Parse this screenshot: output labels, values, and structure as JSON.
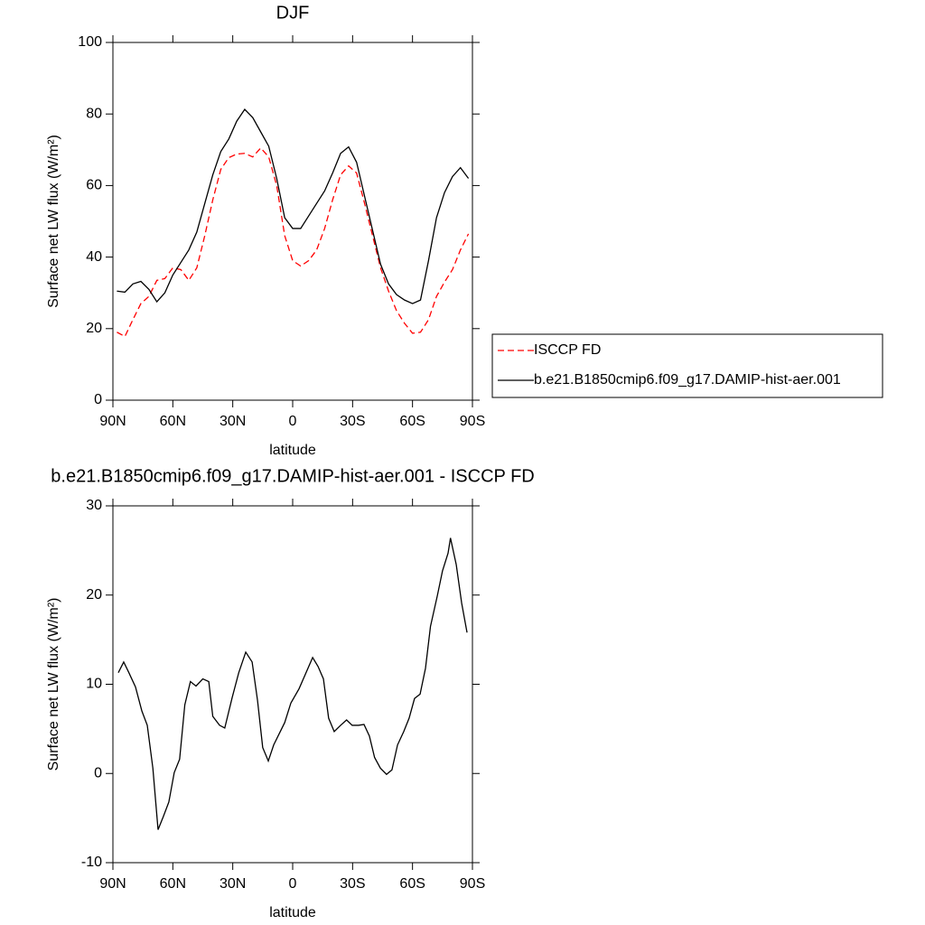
{
  "chart_data": [
    {
      "type": "line",
      "title": "DJF",
      "x_label": "latitude",
      "y_label": "Surface net LW flux (W/m²)",
      "xlim": [
        90,
        -90
      ],
      "xticks": [
        {
          "value": 90,
          "label": "90N"
        },
        {
          "value": 60,
          "label": "60N"
        },
        {
          "value": 30,
          "label": "30N"
        },
        0,
        {
          "value": -30,
          "label": "30S"
        },
        {
          "value": -60,
          "label": "60S"
        },
        {
          "value": -90,
          "label": "90S"
        }
      ],
      "ylim": [
        0,
        100
      ],
      "yticks": [
        0,
        20,
        40,
        60,
        80,
        100
      ],
      "legend": "right",
      "x": [
        88,
        84,
        80,
        76,
        72,
        68,
        64,
        60,
        56,
        52,
        48,
        44,
        40,
        36,
        32,
        28,
        24,
        20,
        16,
        12,
        8,
        4,
        0,
        -4,
        -8,
        -12,
        -16,
        -20,
        -24,
        -28,
        -32,
        -36,
        -40,
        -44,
        -48,
        -52,
        -56,
        -60,
        -64,
        -68,
        -72,
        -76,
        -80,
        -84,
        -88
      ],
      "series": [
        {
          "name": "ISCCP FD",
          "color": "#ff0000",
          "linestyle": "dashed",
          "values": [
            19,
            17.8,
            22.5,
            27,
            29,
            33.5,
            34,
            37,
            36.5,
            33.5,
            37,
            46,
            56,
            64.5,
            67.8,
            68.8,
            69,
            68,
            70.5,
            68,
            60,
            46,
            39,
            37.5,
            39,
            42,
            48,
            56,
            63,
            65.5,
            63.5,
            55,
            46,
            37,
            30.5,
            25,
            21.5,
            18.7,
            19,
            22.5,
            29,
            33,
            36.5,
            42,
            46.5
          ]
        },
        {
          "name": "b.e21.B1850cmip6.f09_g17.DAMIP-hist-aer.001",
          "color": "#000000",
          "linestyle": "solid",
          "values": [
            30.5,
            30.2,
            32.5,
            33.2,
            31,
            27.5,
            30,
            35,
            38.5,
            42,
            47,
            55,
            63,
            69.5,
            73,
            78,
            81.3,
            79,
            75,
            71,
            62,
            51,
            48,
            48,
            51.5,
            55,
            58.5,
            63.5,
            69,
            70.8,
            66.5,
            57,
            47.5,
            38,
            32.5,
            29.5,
            28,
            27,
            28,
            39,
            51,
            58,
            62.5,
            65,
            62
          ]
        }
      ]
    },
    {
      "type": "line",
      "title": "b.e21.B1850cmip6.f09_g17.DAMIP-hist-aer.001 - ISCCP FD",
      "x_label": "latitude",
      "y_label": "Surface net LW flux (W/m²)",
      "xlim": [
        90,
        -90
      ],
      "xticks": [
        {
          "value": 90,
          "label": "90N"
        },
        {
          "value": 60,
          "label": "60N"
        },
        {
          "value": 30,
          "label": "30N"
        },
        0,
        {
          "value": -30,
          "label": "30S"
        },
        {
          "value": -60,
          "label": "60S"
        },
        {
          "value": -90,
          "label": "90S"
        }
      ],
      "ylim": [
        -10,
        30
      ],
      "yticks": [
        -10,
        0,
        10,
        20,
        30
      ],
      "x": [
        87.3,
        84.6,
        82,
        78.7,
        75.5,
        72.8,
        70,
        67.4,
        64.7,
        62,
        59.3,
        56.6,
        54,
        51.2,
        48.4,
        45,
        42,
        40,
        36.6,
        34,
        30.3,
        27,
        23.5,
        20.3,
        17.6,
        15,
        12.2,
        9.5,
        4,
        0.9,
        -3.2,
        -10,
        -12.7,
        -15.4,
        -18,
        -20.8,
        -24,
        -27,
        -29.8,
        -33,
        -35.7,
        -38.4,
        -41,
        -43.9,
        -47,
        -49.7,
        -52.5,
        -55.6,
        -58.3,
        -61,
        -63.8,
        -66.5,
        -69,
        -72.4,
        -75,
        -77.8,
        -79,
        -81.9,
        -84.6,
        -87.3
      ],
      "color": "#000000",
      "values": [
        11.3,
        12.5,
        11.3,
        9.7,
        7,
        5.4,
        0.6,
        -6.3,
        -4.8,
        -3.2,
        0.1,
        1.6,
        7.7,
        10.3,
        9.8,
        10.6,
        10.3,
        6.4,
        5.4,
        5.1,
        8.5,
        11.3,
        13.6,
        12.5,
        8.2,
        2.9,
        1.4,
        3.2,
        5.7,
        7.9,
        9.5,
        13,
        12,
        10.6,
        6.2,
        4.7,
        5.4,
        6,
        5.4,
        5.4,
        5.5,
        4.2,
        1.8,
        0.6,
        -0.1,
        0.4,
        3.2,
        4.7,
        6.2,
        8.4,
        8.9,
        11.8,
        16.5,
        19.9,
        22.7,
        24.7,
        26.4,
        23.4,
        19.1,
        15.8
      ]
    }
  ]
}
